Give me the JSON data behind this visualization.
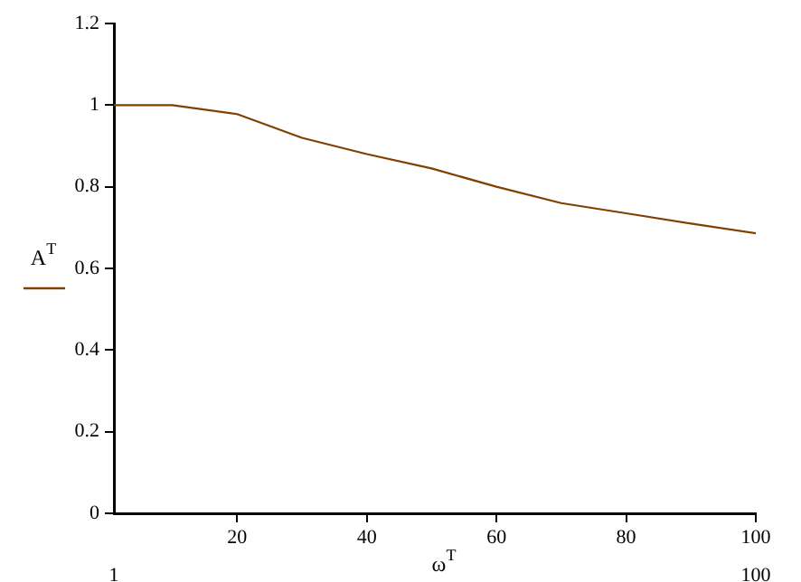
{
  "chart_data": {
    "type": "line",
    "xlabel": "ω$^{T}$",
    "ylabel": "A$^{T}$",
    "x": [
      1,
      10,
      20,
      30,
      40,
      50,
      60,
      70,
      80,
      90,
      100
    ],
    "series": [
      {
        "color": "#804000",
        "values": [
          1.0,
          1.0,
          0.978,
          0.92,
          0.88,
          0.845,
          0.8,
          0.76,
          0.735,
          0.71,
          0.686
        ]
      }
    ],
    "xlim": [
      1,
      100
    ],
    "xticks": [
      20,
      40,
      60,
      80,
      100
    ],
    "x2lim": [
      1,
      100
    ],
    "x2ticks": [
      1,
      100
    ],
    "ylim": [
      0,
      1.2
    ],
    "yticks": [
      0,
      0.2,
      0.4,
      0.6,
      0.8,
      1,
      1.2
    ],
    "grid": false,
    "legend": false,
    "marker": "none",
    "line_style": "solid"
  }
}
